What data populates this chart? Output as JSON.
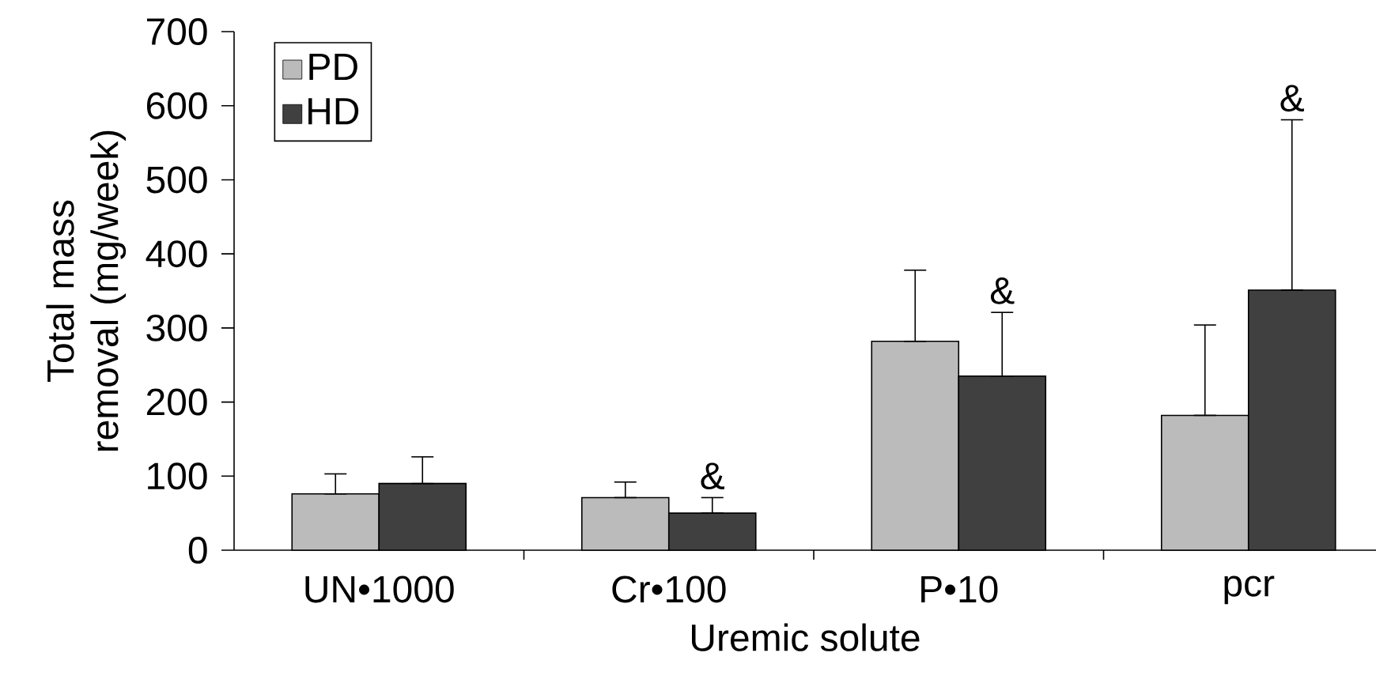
{
  "chart_data": {
    "type": "bar",
    "xlabel": "Uremic solute",
    "ylabel": "Total mass removal (mg/week)",
    "categories": [
      "UN•1000",
      "Cr•100",
      "P•10",
      "pcr"
    ],
    "series": [
      {
        "name": "PD",
        "color": "#bbbbbb",
        "values": [
          76,
          71,
          282,
          182
        ],
        "errors": [
          [
            76,
            103
          ],
          [
            71,
            92
          ],
          [
            282,
            378
          ],
          [
            182,
            304
          ]
        ]
      },
      {
        "name": "HD",
        "color": "#404040",
        "values": [
          90,
          50,
          235,
          351
        ],
        "errors": [
          [
            90,
            126
          ],
          [
            50,
            71
          ],
          [
            235,
            321
          ],
          [
            351,
            581
          ]
        ]
      }
    ],
    "ylim": [
      0,
      700
    ],
    "yticks": [
      0,
      100,
      200,
      300,
      400,
      500,
      600,
      700
    ],
    "legend": "top left",
    "annotations": [
      "&",
      "&",
      "&"
    ]
  }
}
